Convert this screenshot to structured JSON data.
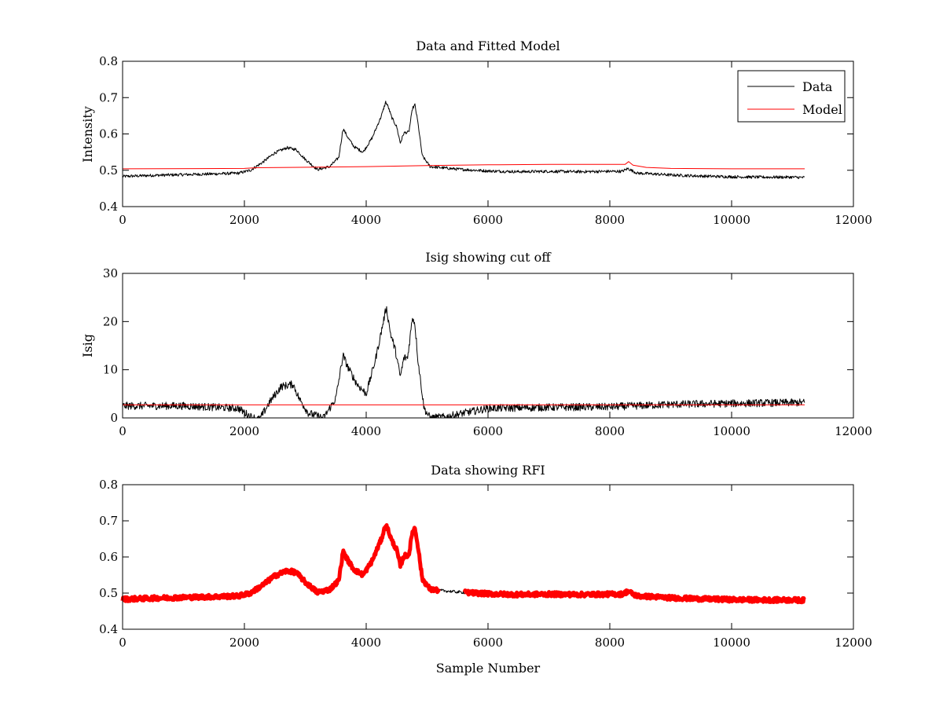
{
  "figure": {
    "background": "#ffffff",
    "colors": {
      "data": "#000000",
      "model": "#ff0000",
      "rfi": "#ff0000",
      "axes": "#000000"
    }
  },
  "chart_data": [
    {
      "type": "line",
      "title": "Data and Fitted Model",
      "xlabel": "",
      "ylabel": "Intensity",
      "xlim": [
        0,
        12000
      ],
      "ylim": [
        0.4,
        0.8
      ],
      "xticks": [
        0,
        2000,
        4000,
        6000,
        8000,
        10000,
        12000
      ],
      "yticks": [
        0.4,
        0.5,
        0.6,
        0.7,
        0.8
      ],
      "xtick_labels": [
        "0",
        "2000",
        "4000",
        "6000",
        "8000",
        "10000",
        "12000"
      ],
      "ytick_labels": [
        "0.4",
        "0.5",
        "0.6",
        "0.7",
        "0.8"
      ],
      "grid": false,
      "legend": {
        "placement": "top-right",
        "entries": [
          {
            "label": "Data",
            "color": "#000000"
          },
          {
            "label": "Model",
            "color": "#ff0000"
          }
        ]
      },
      "series": [
        {
          "name": "Data",
          "color": "#000000",
          "noise": 0.004,
          "x": [
            0,
            500,
            1000,
            1500,
            1900,
            2100,
            2300,
            2500,
            2700,
            2850,
            3000,
            3200,
            3400,
            3550,
            3620,
            3700,
            3800,
            3950,
            4100,
            4250,
            4320,
            4360,
            4420,
            4500,
            4560,
            4620,
            4700,
            4760,
            4800,
            4850,
            4920,
            5050,
            5500,
            6000,
            6500,
            7000,
            7500,
            8000,
            8200,
            8300,
            8350,
            8450,
            8700,
            9000,
            9500,
            10000,
            10500,
            11000,
            11200
          ],
          "y": [
            0.483,
            0.486,
            0.488,
            0.49,
            0.492,
            0.5,
            0.522,
            0.548,
            0.562,
            0.557,
            0.53,
            0.502,
            0.51,
            0.535,
            0.615,
            0.59,
            0.565,
            0.55,
            0.59,
            0.65,
            0.688,
            0.675,
            0.645,
            0.62,
            0.575,
            0.603,
            0.605,
            0.67,
            0.68,
            0.63,
            0.54,
            0.51,
            0.503,
            0.498,
            0.496,
            0.497,
            0.496,
            0.497,
            0.497,
            0.505,
            0.5,
            0.492,
            0.49,
            0.487,
            0.484,
            0.482,
            0.481,
            0.481,
            0.48
          ]
        },
        {
          "name": "Model",
          "color": "#ff0000",
          "noise": 0,
          "x": [
            0,
            2000,
            2200,
            4000,
            5000,
            6000,
            7000,
            8000,
            8250,
            8310,
            8380,
            8600,
            9000,
            10000,
            11200
          ],
          "y": [
            0.504,
            0.505,
            0.507,
            0.51,
            0.513,
            0.515,
            0.516,
            0.516,
            0.516,
            0.524,
            0.514,
            0.508,
            0.505,
            0.504,
            0.504
          ]
        }
      ]
    },
    {
      "type": "line",
      "title": "Isig showing cut off",
      "xlabel": "",
      "ylabel": "Isig",
      "xlim": [
        0,
        12000
      ],
      "ylim": [
        0,
        30
      ],
      "xticks": [
        0,
        2000,
        4000,
        6000,
        8000,
        10000,
        12000
      ],
      "yticks": [
        0,
        10,
        20,
        30
      ],
      "xtick_labels": [
        "0",
        "2000",
        "4000",
        "6000",
        "8000",
        "10000",
        "12000"
      ],
      "ytick_labels": [
        "0",
        "10",
        "20",
        "30"
      ],
      "grid": false,
      "series": [
        {
          "name": "Isig",
          "color": "#000000",
          "noise": 0.8,
          "x": [
            0,
            1000,
            1900,
            2100,
            2250,
            2400,
            2600,
            2800,
            2900,
            3050,
            3300,
            3500,
            3620,
            3700,
            3850,
            4000,
            4150,
            4250,
            4330,
            4400,
            4480,
            4560,
            4620,
            4680,
            4760,
            4800,
            4850,
            4950,
            5050,
            5300,
            5600,
            6000,
            7000,
            8000,
            9000,
            10000,
            11200
          ],
          "y": [
            2.5,
            2.5,
            2.0,
            0.3,
            -0.3,
            3.0,
            6.5,
            7.0,
            4.0,
            1.0,
            0.0,
            4.0,
            13.0,
            10.5,
            7.0,
            5.0,
            12.0,
            18.0,
            23.0,
            17.5,
            14.0,
            8.5,
            12.5,
            12.5,
            21.0,
            19.5,
            12.0,
            2.0,
            0.0,
            0.2,
            1.0,
            2.0,
            2.2,
            2.3,
            2.8,
            3.0,
            3.2
          ]
        },
        {
          "name": "Cut off",
          "color": "#ff0000",
          "noise": 0,
          "x": [
            0,
            11200
          ],
          "y": [
            2.7,
            2.7
          ]
        }
      ]
    },
    {
      "type": "line",
      "title": "Data showing RFI",
      "xlabel": "Sample Number",
      "ylabel": "",
      "xlim": [
        0,
        12000
      ],
      "ylim": [
        0.4,
        0.8
      ],
      "xticks": [
        0,
        2000,
        4000,
        6000,
        8000,
        10000,
        12000
      ],
      "yticks": [
        0.4,
        0.5,
        0.6,
        0.7,
        0.8
      ],
      "xtick_labels": [
        "0",
        "2000",
        "4000",
        "6000",
        "8000",
        "10000",
        "12000"
      ],
      "ytick_labels": [
        "0.4",
        "0.5",
        "0.6",
        "0.7",
        "0.8"
      ],
      "grid": false,
      "series": [
        {
          "name": "Data",
          "color": "#000000",
          "noise": 0.004,
          "x": [
            0,
            500,
            1000,
            1500,
            1900,
            2100,
            2300,
            2500,
            2700,
            2850,
            3000,
            3200,
            3400,
            3550,
            3620,
            3700,
            3800,
            3950,
            4100,
            4250,
            4320,
            4360,
            4420,
            4500,
            4560,
            4620,
            4700,
            4760,
            4800,
            4850,
            4920,
            5050,
            5500,
            6000,
            6500,
            7000,
            7500,
            8000,
            8200,
            8300,
            8350,
            8450,
            8700,
            9000,
            9500,
            10000,
            10500,
            11000,
            11200
          ],
          "y": [
            0.483,
            0.486,
            0.488,
            0.49,
            0.492,
            0.5,
            0.522,
            0.548,
            0.562,
            0.557,
            0.53,
            0.502,
            0.51,
            0.535,
            0.615,
            0.59,
            0.565,
            0.55,
            0.59,
            0.65,
            0.688,
            0.675,
            0.645,
            0.62,
            0.575,
            0.603,
            0.605,
            0.67,
            0.68,
            0.63,
            0.54,
            0.51,
            0.503,
            0.498,
            0.496,
            0.497,
            0.496,
            0.497,
            0.497,
            0.505,
            0.5,
            0.492,
            0.49,
            0.487,
            0.484,
            0.482,
            0.481,
            0.481,
            0.48
          ]
        },
        {
          "name": "RFI",
          "color": "#ff0000",
          "noise": 0.006,
          "stroke_width": 5,
          "exclude_ranges": [
            [
              5200,
              5600
            ]
          ],
          "x": [
            0,
            500,
            1000,
            1500,
            1900,
            2100,
            2300,
            2500,
            2700,
            2850,
            3000,
            3200,
            3400,
            3550,
            3620,
            3700,
            3800,
            3950,
            4100,
            4250,
            4320,
            4360,
            4420,
            4500,
            4560,
            4620,
            4700,
            4760,
            4800,
            4850,
            4920,
            5050,
            5500,
            6000,
            6500,
            7000,
            7500,
            8000,
            8200,
            8300,
            8350,
            8450,
            8700,
            9000,
            9500,
            10000,
            10500,
            11000,
            11200
          ],
          "y": [
            0.483,
            0.486,
            0.488,
            0.49,
            0.492,
            0.5,
            0.522,
            0.548,
            0.562,
            0.557,
            0.53,
            0.502,
            0.51,
            0.535,
            0.615,
            0.59,
            0.565,
            0.55,
            0.59,
            0.65,
            0.688,
            0.675,
            0.645,
            0.62,
            0.575,
            0.603,
            0.605,
            0.67,
            0.68,
            0.63,
            0.54,
            0.51,
            0.503,
            0.498,
            0.496,
            0.497,
            0.496,
            0.497,
            0.497,
            0.505,
            0.5,
            0.492,
            0.49,
            0.487,
            0.484,
            0.482,
            0.481,
            0.481,
            0.48
          ]
        }
      ]
    }
  ]
}
